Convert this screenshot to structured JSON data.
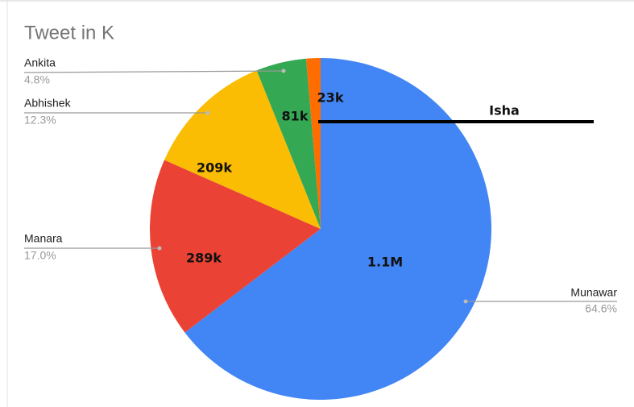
{
  "chart_data": {
    "type": "pie",
    "title": "Tweet in K",
    "categories": [
      "Munawar",
      "Manara",
      "Abhishek",
      "Ankita",
      "Isha"
    ],
    "values": [
      1100000,
      289000,
      209000,
      81000,
      23000
    ],
    "value_labels": [
      "1.1M",
      "289k",
      "209k",
      "81k",
      "23k"
    ],
    "percent_labels": [
      "64.6%",
      "17.0%",
      "12.3%",
      "4.8%",
      null
    ],
    "colors": [
      "#4285f4",
      "#ea4335",
      "#fbbc04",
      "#34a853",
      "#ff6d01"
    ]
  }
}
